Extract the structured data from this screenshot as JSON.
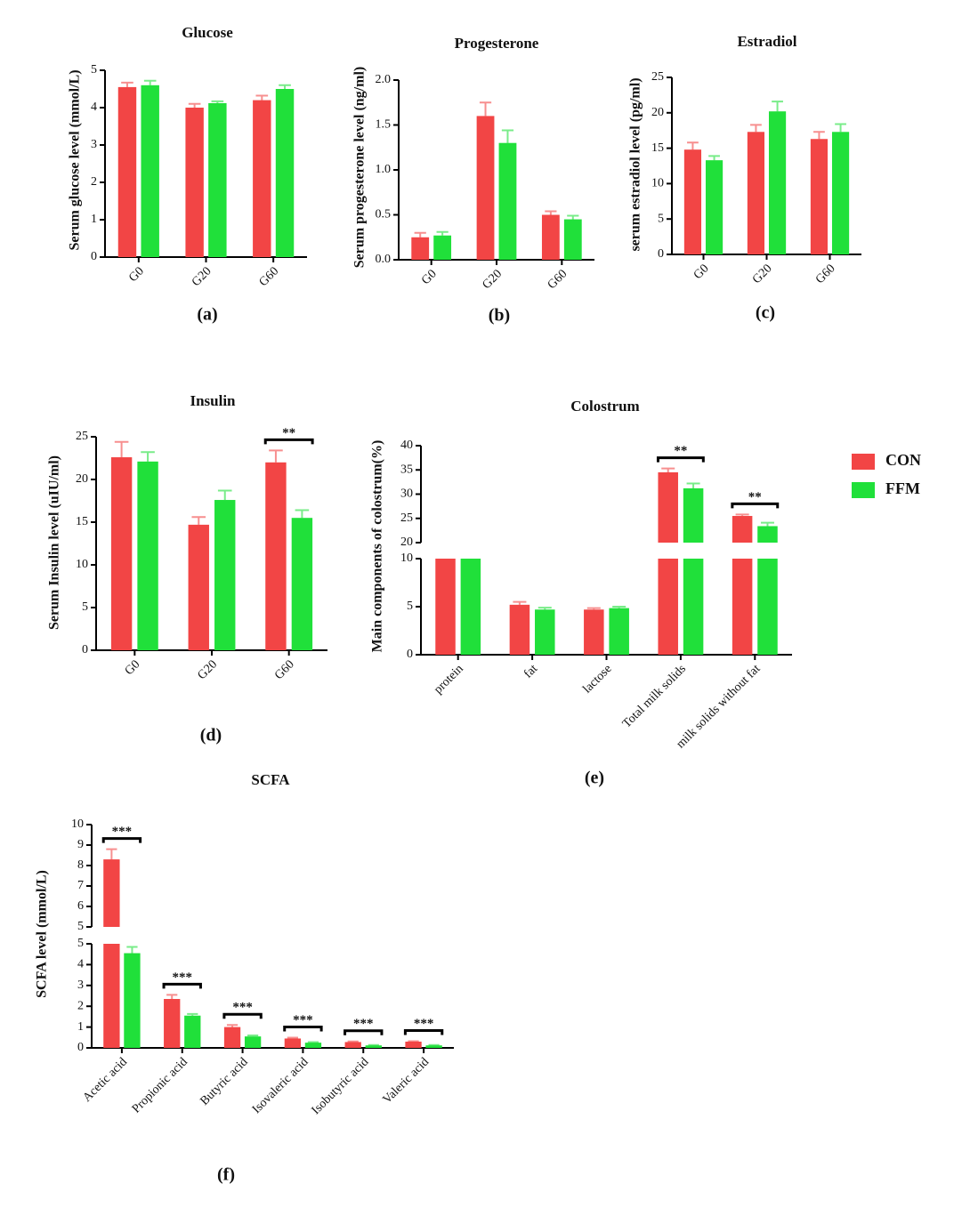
{
  "chart_data": [
    {
      "type": "bar",
      "title": "Glucose",
      "panel": "(a)",
      "ylabel": "Serum glucose level (mmol/L)",
      "categories": [
        "G0",
        "G20",
        "G60"
      ],
      "series": [
        {
          "name": "CON",
          "color": "#f24545",
          "values": [
            4.55,
            4.0,
            4.2
          ],
          "errors": [
            0.12,
            0.1,
            0.12
          ]
        },
        {
          "name": "FFM",
          "color": "#20e03a",
          "values": [
            4.6,
            4.12,
            4.5
          ],
          "errors": [
            0.12,
            0.05,
            0.1
          ]
        }
      ],
      "ylim": [
        0,
        5
      ],
      "yticks": [
        0,
        1,
        2,
        3,
        4,
        5
      ]
    },
    {
      "type": "bar",
      "title": "Progesterone",
      "panel": "(b)",
      "ylabel": "Serum progesterone level (ng/ml)",
      "categories": [
        "G0",
        "G20",
        "G60"
      ],
      "series": [
        {
          "name": "CON",
          "color": "#f24545",
          "values": [
            0.25,
            1.6,
            0.5
          ],
          "errors": [
            0.05,
            0.15,
            0.04
          ]
        },
        {
          "name": "FFM",
          "color": "#20e03a",
          "values": [
            0.27,
            1.3,
            0.45
          ],
          "errors": [
            0.04,
            0.14,
            0.04
          ]
        }
      ],
      "ylim": [
        0,
        2
      ],
      "yticks": [
        {
          "value": 0,
          "label": "0.0"
        },
        0.5,
        {
          "value": 1,
          "label": "1.0"
        },
        1.5,
        {
          "value": 2,
          "label": "2.0"
        }
      ]
    },
    {
      "type": "bar",
      "title": "Estradiol",
      "panel": "(c)",
      "ylabel": "serum estradiol level (pg/ml)",
      "categories": [
        "G0",
        "G20",
        "G60"
      ],
      "series": [
        {
          "name": "CON",
          "color": "#f24545",
          "values": [
            14.8,
            17.3,
            16.3
          ],
          "errors": [
            1.0,
            1.0,
            1.0
          ]
        },
        {
          "name": "FFM",
          "color": "#20e03a",
          "values": [
            13.3,
            20.2,
            17.3
          ],
          "errors": [
            0.6,
            1.4,
            1.1
          ]
        }
      ],
      "ylim": [
        0,
        25
      ],
      "yticks": [
        0,
        5,
        10,
        15,
        20,
        25
      ]
    },
    {
      "type": "bar",
      "title": "Insulin",
      "panel": "(d)",
      "ylabel": "Serum Insulin level (uIU/ml)",
      "categories": [
        "G0",
        "G20",
        "G60"
      ],
      "series": [
        {
          "name": "CON",
          "color": "#f24545",
          "values": [
            22.6,
            14.7,
            22.0
          ],
          "errors": [
            1.8,
            0.9,
            1.4
          ]
        },
        {
          "name": "FFM",
          "color": "#20e03a",
          "values": [
            22.1,
            17.6,
            15.5
          ],
          "errors": [
            1.1,
            1.1,
            0.9
          ]
        }
      ],
      "ylim": [
        0,
        25
      ],
      "yticks": [
        0,
        5,
        10,
        15,
        20,
        25
      ],
      "annotations": [
        {
          "x": "G60",
          "text": "**"
        }
      ]
    },
    {
      "type": "bar",
      "title": "Colostrum",
      "panel": "(e)",
      "ylabel": "Main components of colostrum(%)",
      "categories": [
        "protein",
        "fat",
        "lactose",
        "Total milk solids",
        "milk solids without fat"
      ],
      "series": [
        {
          "name": "CON",
          "color": "#f24545",
          "values": [
            14,
            5.2,
            4.7,
            34.5,
            25.5
          ],
          "errors": [
            0,
            0.3,
            0.15,
            0.8,
            0.3
          ]
        },
        {
          "name": "FFM",
          "color": "#20e03a",
          "values": [
            14,
            4.7,
            4.85,
            31.2,
            23.4
          ],
          "errors": [
            0,
            0.2,
            0.15,
            1.0,
            0.7
          ]
        }
      ],
      "segments": [
        {
          "ylim": [
            0,
            10
          ],
          "yticks": [
            0,
            5,
            10
          ]
        },
        {
          "ylim": [
            20,
            40
          ],
          "yticks": [
            20,
            25,
            30,
            35,
            40
          ]
        }
      ],
      "annotations": [
        {
          "x": "Total milk solids",
          "text": "**"
        },
        {
          "x": "milk solids without fat",
          "text": "**"
        }
      ],
      "legend": "right"
    },
    {
      "type": "bar",
      "title": "SCFA",
      "panel": "(f)",
      "ylabel": "SCFA level (mmol/L)",
      "categories": [
        "Acetic acid",
        "Propionic acid",
        "Butyric acid",
        "Isovaleric acid",
        "Isobutyric acid",
        "Valeric acid"
      ],
      "series": [
        {
          "name": "CON",
          "color": "#f24545",
          "values": [
            8.3,
            2.35,
            1.0,
            0.45,
            0.28,
            0.3
          ],
          "errors": [
            0.5,
            0.2,
            0.1,
            0.04,
            0.03,
            0.02
          ]
        },
        {
          "name": "FFM",
          "color": "#20e03a",
          "values": [
            4.55,
            1.55,
            0.55,
            0.25,
            0.12,
            0.12
          ],
          "errors": [
            0.3,
            0.08,
            0.05,
            0.03,
            0.02,
            0.02
          ]
        }
      ],
      "segments": [
        {
          "ylim": [
            0,
            5
          ],
          "yticks": [
            0,
            1,
            2,
            3,
            4,
            5
          ]
        },
        {
          "ylim": [
            5,
            10
          ],
          "yticks": [
            5,
            6,
            7,
            8,
            9,
            10
          ]
        }
      ],
      "annotations": [
        {
          "x": "Acetic acid",
          "text": "***"
        },
        {
          "x": "Propionic acid",
          "text": "***"
        },
        {
          "x": "Butyric acid",
          "text": "***"
        },
        {
          "x": "Isovaleric acid",
          "text": "***"
        },
        {
          "x": "Isobutyric acid",
          "text": "***"
        },
        {
          "x": "Valeric acid",
          "text": "***"
        }
      ]
    }
  ]
}
